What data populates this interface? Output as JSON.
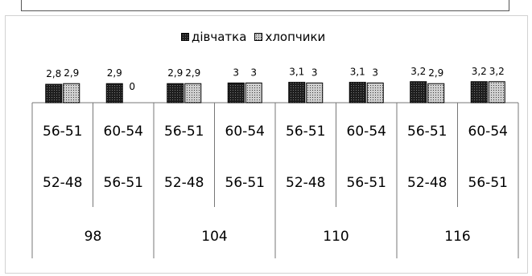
{
  "legend": {
    "girls": "дівчатка",
    "boys": "хлопчики"
  },
  "colors": {
    "girls": "#1e1e1e",
    "boys": "#c8c8c8"
  },
  "chart_data": {
    "type": "bar",
    "categories": [
      "56-51",
      "60-54",
      "56-51",
      "60-54",
      "56-51",
      "60-54",
      "56-51",
      "60-54"
    ],
    "series": [
      {
        "name": "дівчатка",
        "values": [
          2.8,
          2.9,
          2.9,
          3,
          3.1,
          3.1,
          3.2,
          3.2
        ],
        "labels": [
          "2,8",
          "2,9",
          "2,9",
          "3",
          "3,1",
          "3,1",
          "3,2",
          "3,2"
        ]
      },
      {
        "name": "хлопчики",
        "values": [
          2.9,
          0,
          2.9,
          3,
          3,
          3,
          2.9,
          3.2
        ],
        "labels": [
          "2,9",
          "0",
          "2,9",
          "3",
          "3",
          "3",
          "2,9",
          "3,2"
        ]
      }
    ],
    "row1": [
      "56-51",
      "60-54",
      "56-51",
      "60-54",
      "56-51",
      "60-54",
      "56-51",
      "60-54"
    ],
    "row2": [
      "52-48",
      "56-51",
      "52-48",
      "56-51",
      "52-48",
      "56-51",
      "52-48",
      "56-51"
    ],
    "groups": [
      "98",
      "104",
      "110",
      "116"
    ]
  }
}
